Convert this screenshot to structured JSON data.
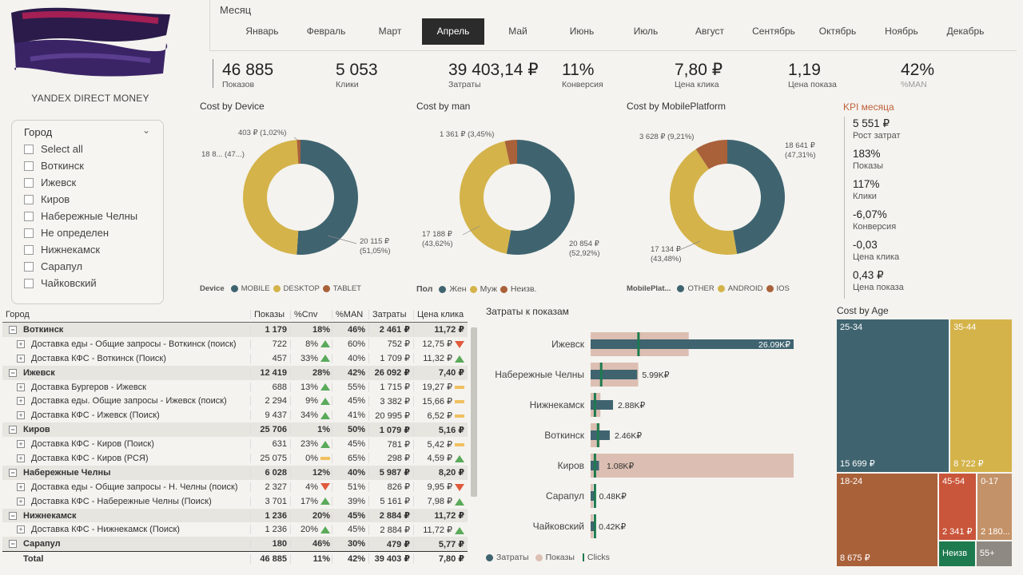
{
  "logo": {
    "caption": "YANDEX DIRECT MONEY"
  },
  "months": {
    "title": "Месяц",
    "items": [
      "Январь",
      "Февраль",
      "Март",
      "Апрель",
      "Май",
      "Июнь",
      "Июль",
      "Август",
      "Сентябрь",
      "Октябрь",
      "Ноябрь",
      "Декабрь"
    ],
    "selected": "Апрель"
  },
  "kpis": [
    {
      "value": "46 885",
      "label": "Показов"
    },
    {
      "value": "5 053",
      "label": "Клики"
    },
    {
      "value": "39 403,14 ₽",
      "label": "Затраты"
    },
    {
      "value": "11%",
      "label": "Конверсия"
    },
    {
      "value": "7,80 ₽",
      "label": "Цена клика"
    },
    {
      "value": "1,19",
      "label": "Цена показа"
    },
    {
      "value": "42%",
      "label": "%MAN"
    }
  ],
  "colors": {
    "teal": "#3f6470",
    "gold": "#d4b34a",
    "brown": "#a9613a",
    "pink": "#dcbfb2",
    "green": "#1e7a4f"
  },
  "donuts": [
    {
      "title": "Cost by Device",
      "legend_title": "Device",
      "slices": [
        {
          "name": "MOBILE",
          "value": 20115,
          "color": "#3f6470"
        },
        {
          "name": "DESKTOP",
          "value": 18885,
          "color": "#d4b34a"
        },
        {
          "name": "TABLET",
          "value": 403,
          "color": "#a9613a"
        }
      ],
      "labels": {
        "small": "403 ₽ (1,02%)",
        "left": "18 8... (47...)",
        "right_v": "20 115 ₽",
        "right_p": "(51,05%)"
      }
    },
    {
      "title": "Cost by man",
      "legend_title": "Пол",
      "slices": [
        {
          "name": "Жен",
          "value": 20854,
          "color": "#3f6470"
        },
        {
          "name": "Муж",
          "value": 17188,
          "color": "#d4b34a"
        },
        {
          "name": "Неизв.",
          "value": 1361,
          "color": "#a9613a"
        }
      ],
      "labels": {
        "small": "1 361 ₽ (3,45%)",
        "left_v": "17 188 ₽",
        "left_p": "(43,62%)",
        "right_v": "20 854 ₽",
        "right_p": "(52,92%)"
      }
    },
    {
      "title": "Cost by MobilePlatform",
      "legend_title": "MobilePlat...",
      "slices": [
        {
          "name": "OTHER",
          "value": 18641,
          "color": "#3f6470"
        },
        {
          "name": "ANDROID",
          "value": 17134,
          "color": "#d4b34a"
        },
        {
          "name": "IOS",
          "value": 3628,
          "color": "#a9613a"
        }
      ],
      "labels": {
        "small": "3 628 ₽ (9,21%)",
        "right_v": "18 641 ₽",
        "right_p": "(47,31%)",
        "left_v": "17 134 ₽",
        "left_p": "(43,48%)"
      }
    }
  ],
  "kpi_month": {
    "title": "KPI месяца",
    "items": [
      {
        "value": "5 551 ₽",
        "label": "Рост затрат"
      },
      {
        "value": "183%",
        "label": "Показы"
      },
      {
        "value": "117%",
        "label": "Клики"
      },
      {
        "value": "-6,07%",
        "label": "Конверсия"
      },
      {
        "value": "-0,03",
        "label": "Цена клика"
      },
      {
        "value": "0,43 ₽",
        "label": "Цена показа"
      }
    ]
  },
  "slicer": {
    "title": "Город",
    "items": [
      "Select all",
      "Воткинск",
      "Ижевск",
      "Киров",
      "Набережные Челны",
      "Не определен",
      "Нижнекамск",
      "Сарапул",
      "Чайковский"
    ]
  },
  "table": {
    "headers": [
      "Город",
      "Показы",
      "%Cnv",
      "%MAN",
      "Затраты",
      "Цена клика"
    ],
    "rows": [
      {
        "level": 0,
        "name": "Воткинск",
        "shows": "1 179",
        "cnv": "18%",
        "man": "46%",
        "cost": "2 461 ₽",
        "cpc": "11,72 ₽"
      },
      {
        "level": 1,
        "name": "Доставка еды - Общие запросы - Воткинск (поиск)",
        "shows": "722",
        "cnv": "8%",
        "cnv_ind": "up",
        "man": "60%",
        "cost": "752 ₽",
        "cpc": "12,75 ₽",
        "cpc_ind": "down"
      },
      {
        "level": 1,
        "name": "Доставка КФС - Воткинск (Поиск)",
        "shows": "457",
        "cnv": "33%",
        "cnv_ind": "up",
        "man": "40%",
        "cost": "1 709 ₽",
        "cpc": "11,32 ₽",
        "cpc_ind": "up"
      },
      {
        "level": 0,
        "name": "Ижевск",
        "shows": "12 419",
        "cnv": "28%",
        "man": "42%",
        "cost": "26 092 ₽",
        "cpc": "7,40 ₽"
      },
      {
        "level": 1,
        "name": "Доставка Бургеров - Ижевск",
        "shows": "688",
        "cnv": "13%",
        "cnv_ind": "up",
        "man": "55%",
        "cost": "1 715 ₽",
        "cpc": "19,27 ₽",
        "cpc_ind": "flat"
      },
      {
        "level": 1,
        "name": "Доставка еды. Общие запросы - Ижевск (поиск)",
        "shows": "2 294",
        "cnv": "9%",
        "cnv_ind": "up",
        "man": "45%",
        "cost": "3 382 ₽",
        "cpc": "15,66 ₽",
        "cpc_ind": "flat"
      },
      {
        "level": 1,
        "name": "Доставка КФС - Ижевск (Поиск)",
        "shows": "9 437",
        "cnv": "34%",
        "cnv_ind": "up",
        "man": "41%",
        "cost": "20 995 ₽",
        "cpc": "6,52 ₽",
        "cpc_ind": "flat"
      },
      {
        "level": 0,
        "name": "Киров",
        "shows": "25 706",
        "cnv": "1%",
        "man": "50%",
        "cost": "1 079 ₽",
        "cpc": "5,16 ₽"
      },
      {
        "level": 1,
        "name": "Доставка КФС - Киров (Поиск)",
        "shows": "631",
        "cnv": "23%",
        "cnv_ind": "up",
        "man": "45%",
        "cost": "781 ₽",
        "cpc": "5,42 ₽",
        "cpc_ind": "flat"
      },
      {
        "level": 1,
        "name": "Доставка КФС - Киров (РСЯ)",
        "shows": "25 075",
        "cnv": "0%",
        "cnv_ind": "flat",
        "man": "65%",
        "cost": "298 ₽",
        "cpc": "4,59 ₽",
        "cpc_ind": "up"
      },
      {
        "level": 0,
        "name": "Набережные Челны",
        "shows": "6 028",
        "cnv": "12%",
        "man": "40%",
        "cost": "5 987 ₽",
        "cpc": "8,20 ₽"
      },
      {
        "level": 1,
        "name": "Доставка еды - Общие запросы - Н. Челны (поиск)",
        "shows": "2 327",
        "cnv": "4%",
        "cnv_ind": "down",
        "man": "51%",
        "cost": "826 ₽",
        "cpc": "9,95 ₽",
        "cpc_ind": "down"
      },
      {
        "level": 1,
        "name": "Доставка КФС - Набережные Челны (Поиск)",
        "shows": "3 701",
        "cnv": "17%",
        "cnv_ind": "up",
        "man": "39%",
        "cost": "5 161 ₽",
        "cpc": "7,98 ₽",
        "cpc_ind": "up"
      },
      {
        "level": 0,
        "name": "Нижнекамск",
        "shows": "1 236",
        "cnv": "20%",
        "man": "45%",
        "cost": "2 884 ₽",
        "cpc": "11,72 ₽"
      },
      {
        "level": 1,
        "name": "Доставка КФС - Нижнекамск (Поиск)",
        "shows": "1 236",
        "cnv": "20%",
        "cnv_ind": "up",
        "man": "45%",
        "cost": "2 884 ₽",
        "cpc": "11,72 ₽",
        "cpc_ind": "up"
      },
      {
        "level": 0,
        "name": "Сарапул",
        "shows": "180",
        "cnv": "46%",
        "man": "30%",
        "cost": "479 ₽",
        "cpc": "5,77 ₽"
      }
    ],
    "total": {
      "name": "Total",
      "shows": "46 885",
      "cnv": "11%",
      "man": "42%",
      "cost": "39 403 ₽",
      "cpc": "7,80 ₽"
    }
  },
  "chart_data": [
    {
      "type": "bar",
      "title": "Затраты к показам",
      "categories": [
        "Ижевск",
        "Набережные Челны",
        "Нижнекамск",
        "Воткинск",
        "Киров",
        "Сарапул",
        "Чайковский"
      ],
      "series": [
        {
          "name": "Затраты",
          "values": [
            26.09,
            5.99,
            2.88,
            2.46,
            1.08,
            0.48,
            0.42
          ],
          "color": "#3f6470"
        },
        {
          "name": "Показы",
          "values": [
            12419,
            6028,
            1236,
            1179,
            25706,
            180,
            115
          ],
          "color": "#dcbfb2"
        },
        {
          "name": "Clicks",
          "values": [
            1.5,
            0.3,
            0.1,
            0.2,
            0.1,
            0.1,
            0.1
          ],
          "color": "#1e7a4f"
        }
      ],
      "data_labels": [
        "26.09K₽",
        "5.99K₽",
        "2.88K₽",
        "2.46K₽",
        "1.08K₽",
        "0.48K₽",
        "0.42K₽"
      ],
      "legend": "bottom-left"
    },
    {
      "type": "treemap",
      "title": "Cost by Age",
      "items": [
        {
          "name": "25-34",
          "value": 15699,
          "label": "15 699 ₽",
          "color": "#3f6470"
        },
        {
          "name": "35-44",
          "value": 8722,
          "label": "8 722 ₽",
          "color": "#d4b34a"
        },
        {
          "name": "18-24",
          "value": 8675,
          "label": "8 675 ₽",
          "color": "#a9613a"
        },
        {
          "name": "45-54",
          "value": 2341,
          "label": "2 341 ₽",
          "color": "#c9553a"
        },
        {
          "name": "0-17",
          "value": 2180,
          "label": "2 180...",
          "color": "#c49268"
        },
        {
          "name": "Неизв",
          "value": 900,
          "label": "",
          "color": "#1e7a4f"
        },
        {
          "name": "55+",
          "value": 886,
          "label": "",
          "color": "#8f8983"
        }
      ]
    }
  ]
}
